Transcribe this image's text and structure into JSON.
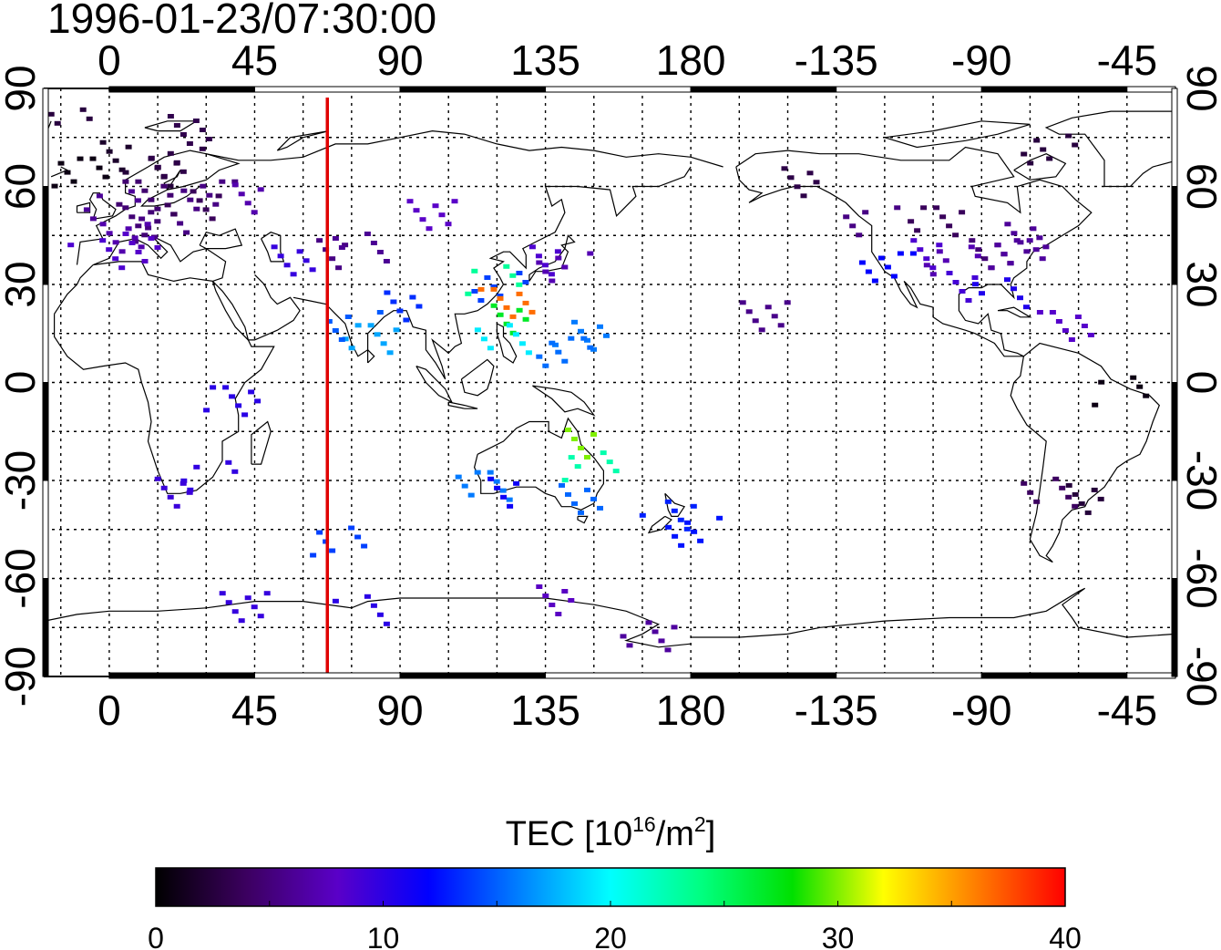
{
  "map": {
    "timestamp": "1996-01-23/07:30:00",
    "lon_ticks": [
      "0",
      "45",
      "90",
      "135",
      "180",
      "-135",
      "-90",
      "-45"
    ],
    "lat_ticks": [
      "90",
      "60",
      "30",
      "0",
      "-30",
      "-60",
      "-90"
    ],
    "lon_values": [
      0,
      45,
      90,
      135,
      180,
      225,
      270,
      315
    ],
    "lat_values": [
      90,
      60,
      30,
      0,
      -30,
      -60,
      -90
    ],
    "lon_range": [
      -20,
      330
    ],
    "lat_range": [
      -90,
      90
    ],
    "grid_step_deg": 15,
    "subsolar_meridian_lon": 67.5,
    "subsolar_line_color": "#e00000"
  },
  "colorbar": {
    "label_main": "TEC  [10",
    "label_exp1": "16",
    "label_mid": "/m",
    "label_exp2": "2",
    "label_end": "]",
    "ticks": [
      "0",
      "10",
      "20",
      "30",
      "40"
    ],
    "range": [
      0,
      40
    ],
    "colors": [
      "#000000",
      "#3c0060",
      "#5a00c8",
      "#0000ff",
      "#0080ff",
      "#00ffff",
      "#00ff80",
      "#00e000",
      "#ffff00",
      "#ff8000",
      "#ff0000"
    ]
  },
  "observations": [
    {
      "region": "europe",
      "lon": 5,
      "lat": 70,
      "tec": 3
    },
    {
      "region": "europe",
      "lon": 12,
      "lat": 65,
      "tec": 3
    },
    {
      "region": "europe",
      "lon": 20,
      "lat": 68,
      "tec": 3
    },
    {
      "region": "europe",
      "lon": 10,
      "lat": 58,
      "tec": 4
    },
    {
      "region": "europe",
      "lon": 0,
      "lat": 55,
      "tec": 5
    },
    {
      "region": "europe",
      "lon": 8,
      "lat": 50,
      "tec": 6
    },
    {
      "region": "europe",
      "lon": 15,
      "lat": 48,
      "tec": 6
    },
    {
      "region": "europe",
      "lon": 3,
      "lat": 45,
      "tec": 7
    },
    {
      "region": "europe",
      "lon": -5,
      "lat": 40,
      "tec": 8
    },
    {
      "region": "europe",
      "lon": 12,
      "lat": 42,
      "tec": 7
    },
    {
      "region": "europe",
      "lon": 25,
      "lat": 55,
      "tec": 5
    },
    {
      "region": "europe",
      "lon": 30,
      "lat": 58,
      "tec": 6
    },
    {
      "region": "europe",
      "lon": 40,
      "lat": 57,
      "tec": 7
    },
    {
      "region": "europe",
      "lon": -15,
      "lat": 80,
      "tec": 2
    },
    {
      "region": "europe",
      "lon": 22,
      "lat": 78,
      "tec": 2
    },
    {
      "region": "europe",
      "lon": -10,
      "lat": 65,
      "tec": 2
    },
    {
      "region": "middle-east",
      "lon": 70,
      "lat": 40,
      "tec": 6
    },
    {
      "region": "middle-east",
      "lon": 77,
      "lat": 42,
      "tec": 6
    },
    {
      "region": "middle-east",
      "lon": 58,
      "lat": 38,
      "tec": 9
    },
    {
      "region": "india",
      "lon": 80,
      "lat": 14,
      "tec": 16
    },
    {
      "region": "india",
      "lon": 75,
      "lat": 18,
      "tec": 16
    },
    {
      "region": "india",
      "lon": 87,
      "lat": 24,
      "tec": 14
    },
    {
      "region": "asia",
      "lon": 120,
      "lat": 30,
      "tec": 14
    },
    {
      "region": "asia",
      "lon": 122,
      "lat": 25,
      "tec": 36
    },
    {
      "region": "asia",
      "lon": 118,
      "lat": 32,
      "tec": 22
    },
    {
      "region": "asia",
      "lon": 124,
      "lat": 20,
      "tec": 28
    },
    {
      "region": "asia",
      "lon": 121,
      "lat": 14,
      "tec": 20
    },
    {
      "region": "asia",
      "lon": 100,
      "lat": 52,
      "tec": 8
    },
    {
      "region": "asia",
      "lon": 130,
      "lat": 38,
      "tec": 8
    },
    {
      "region": "asia",
      "lon": 140,
      "lat": 36,
      "tec": 6
    },
    {
      "region": "pacific",
      "lon": 145,
      "lat": 15,
      "tec": 17
    },
    {
      "region": "pacific",
      "lon": 140,
      "lat": 10,
      "tec": 16
    },
    {
      "region": "australia",
      "lon": 145,
      "lat": -18,
      "tec": 30
    },
    {
      "region": "australia",
      "lon": 148,
      "lat": -25,
      "tec": 22
    },
    {
      "region": "australia",
      "lon": 145,
      "lat": -35,
      "tec": 14
    },
    {
      "region": "australia",
      "lon": 115,
      "lat": -31,
      "tec": 17
    },
    {
      "region": "australia",
      "lon": 125,
      "lat": -33,
      "tec": 12
    },
    {
      "region": "new-zealand",
      "lon": 172,
      "lat": -40,
      "tec": 13
    },
    {
      "region": "new-zealand",
      "lon": 180,
      "lat": -45,
      "tec": 12
    },
    {
      "region": "africa",
      "lon": 37,
      "lat": -5,
      "tec": 9
    },
    {
      "region": "africa",
      "lon": 30,
      "lat": -28,
      "tec": 11
    },
    {
      "region": "africa",
      "lon": 18,
      "lat": -33,
      "tec": 10
    },
    {
      "region": "southern-ocean",
      "lon": 70,
      "lat": -48,
      "tec": 14
    },
    {
      "region": "antarctica",
      "lon": 40,
      "lat": -68,
      "tec": 9
    },
    {
      "region": "antarctica",
      "lon": 77,
      "lat": -69,
      "tec": 9
    },
    {
      "region": "antarctica",
      "lon": 140,
      "lat": -66,
      "tec": 9
    },
    {
      "region": "antarctica",
      "lon": 166,
      "lat": -77,
      "tec": 7
    },
    {
      "region": "north-america",
      "lon": -120,
      "lat": 36,
      "tec": 12
    },
    {
      "region": "north-america",
      "lon": -110,
      "lat": 40,
      "tec": 8
    },
    {
      "region": "north-america",
      "lon": -100,
      "lat": 38,
      "tec": 6
    },
    {
      "region": "north-america",
      "lon": -90,
      "lat": 40,
      "tec": 6
    },
    {
      "region": "north-america",
      "lon": -80,
      "lat": 40,
      "tec": 7
    },
    {
      "region": "north-america",
      "lon": -95,
      "lat": 30,
      "tec": 9
    },
    {
      "region": "north-america",
      "lon": -85,
      "lat": 28,
      "tec": 10
    },
    {
      "region": "north-america",
      "lon": -75,
      "lat": 45,
      "tec": 5
    },
    {
      "region": "north-america",
      "lon": -105,
      "lat": 50,
      "tec": 5
    },
    {
      "region": "north-america",
      "lon": -125,
      "lat": 50,
      "tec": 6
    },
    {
      "region": "north-america",
      "lon": -150,
      "lat": 62,
      "tec": 3
    },
    {
      "region": "north-america",
      "lon": -70,
      "lat": 72,
      "tec": 2
    },
    {
      "region": "caribbean",
      "lon": -65,
      "lat": 18,
      "tec": 7
    },
    {
      "region": "south-america",
      "lon": -48,
      "lat": -2,
      "tec": 2
    },
    {
      "region": "south-america",
      "lon": -58,
      "lat": -35,
      "tec": 3
    },
    {
      "region": "south-america",
      "lon": -70,
      "lat": -33,
      "tec": 4
    },
    {
      "region": "hawaii",
      "lon": -157,
      "lat": 21,
      "tec": 5
    }
  ]
}
